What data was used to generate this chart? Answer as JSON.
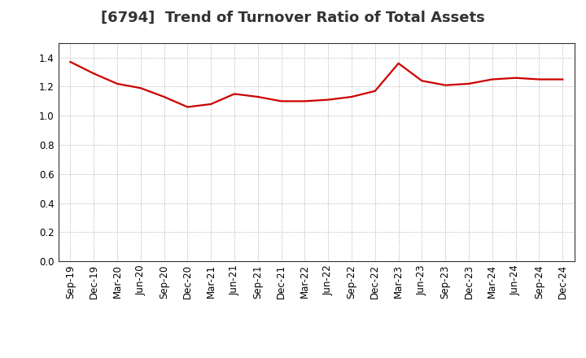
{
  "title": "[6794]  Trend of Turnover Ratio of Total Assets",
  "x_labels": [
    "Sep-19",
    "Dec-19",
    "Mar-20",
    "Jun-20",
    "Sep-20",
    "Dec-20",
    "Mar-21",
    "Jun-21",
    "Sep-21",
    "Dec-21",
    "Mar-22",
    "Jun-22",
    "Sep-22",
    "Dec-22",
    "Mar-23",
    "Jun-23",
    "Sep-23",
    "Dec-23",
    "Mar-24",
    "Jun-24",
    "Sep-24",
    "Dec-24"
  ],
  "y_values": [
    1.37,
    1.29,
    1.22,
    1.19,
    1.13,
    1.06,
    1.08,
    1.15,
    1.13,
    1.1,
    1.1,
    1.11,
    1.13,
    1.17,
    1.36,
    1.24,
    1.21,
    1.22,
    1.25,
    1.26,
    1.25,
    1.25
  ],
  "line_color": "#CC0000",
  "line_width": 1.6,
  "ylim": [
    0.0,
    1.5
  ],
  "yticks": [
    0.0,
    0.2,
    0.4,
    0.6,
    0.8,
    1.0,
    1.2,
    1.4
  ],
  "title_fontsize": 13,
  "tick_fontsize": 8.5,
  "bg_color": "#ffffff",
  "plot_bg_color": "#ffffff",
  "grid_color": "#aaaaaa",
  "title_color": "#333333"
}
